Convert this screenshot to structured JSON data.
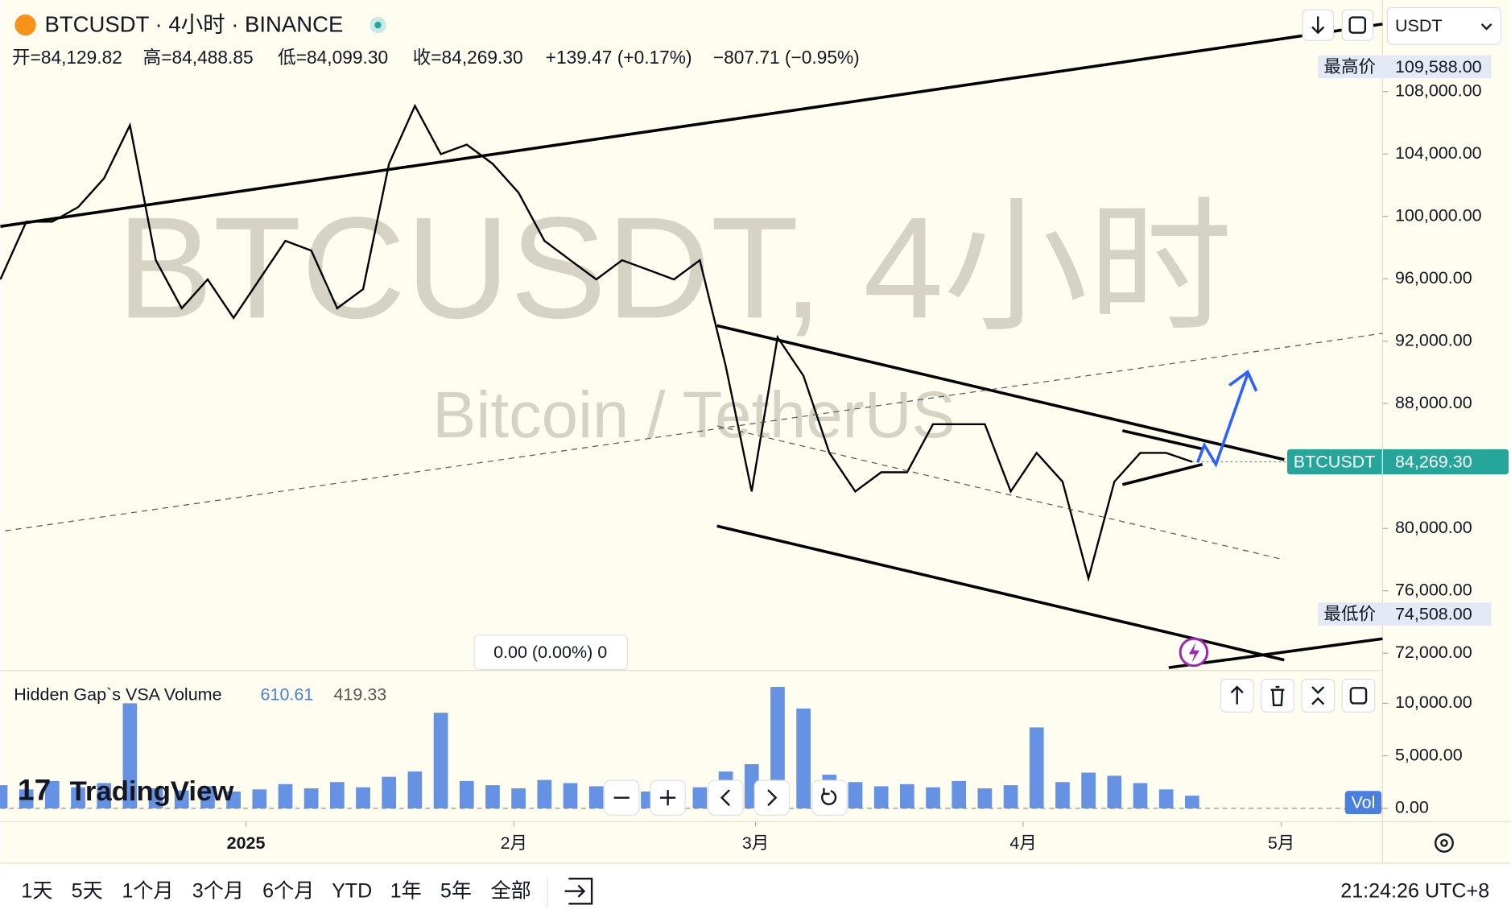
{
  "header": {
    "symbol": "BTCUSDT · 4小时 · BINANCE",
    "ohlc": [
      "开=84,129.82",
      "高=84,488.85",
      "低=84,099.30",
      "收=84,269.30",
      "+139.47 (+0.17%)",
      "−807.71 (−0.95%)"
    ],
    "currency": "USDT"
  },
  "watermark": {
    "title": "BTCUSDT, 4小时",
    "subtitle": "Bitcoin / TetherUS"
  },
  "measure": "0.00 (0.00%) 0",
  "logo": "TradingView",
  "chart_data": [
    {
      "type": "line",
      "series": [
        {
          "name": "BTCUSDT",
          "color": "#000000",
          "values": [
            95960,
            99660,
            99660,
            100590,
            102440,
            105840,
            97190,
            94110,
            95960,
            93490,
            95960,
            98430,
            97810,
            94110,
            95340,
            103370,
            107080,
            103990,
            104600,
            103370,
            101520,
            98430,
            97190,
            95960,
            97190,
            96580,
            95960,
            97190,
            90400,
            82370,
            92250,
            89780,
            84840,
            82370,
            83600,
            83600,
            86680,
            86680,
            86680,
            82370,
            84840,
            82990,
            76790,
            82990,
            84840,
            84840,
            84269.3
          ]
        }
      ],
      "last_label": "84,269.30",
      "last_color": "#26a69a",
      "markers": [
        {
          "label": "最高价",
          "value": 109588,
          "value_label": "109,588.00"
        },
        {
          "label": "最低价",
          "value": 74508,
          "value_label": "74,508.00"
        }
      ],
      "ylim": [
        70950,
        113870
      ],
      "yticks": [
        {
          "value": 72000,
          "label": "72,000.00"
        },
        {
          "value": 76000,
          "label": "76,000.00"
        },
        {
          "value": 80000,
          "label": "80,000.00"
        },
        {
          "value": 88000,
          "label": "88,000.00"
        },
        {
          "value": 92000,
          "label": "92,000.00"
        },
        {
          "value": 96000,
          "label": "96,000.00"
        },
        {
          "value": 100000,
          "label": "100,000.00"
        },
        {
          "value": 104000,
          "label": "104,000.00"
        },
        {
          "value": 108000,
          "label": "108,000.00"
        }
      ],
      "xlim": [
        0,
        53.35
      ],
      "xticks": [
        {
          "value": 9.48,
          "label": "2025"
        },
        {
          "value": 19.82,
          "label": "2月"
        },
        {
          "value": 29.15,
          "label": "3月"
        },
        {
          "value": 39.48,
          "label": "4月"
        },
        {
          "value": 49.44,
          "label": "5月"
        }
      ]
    },
    {
      "type": "bar",
      "title": "Hidden Gap`s VSA Volume",
      "stats": [
        610.61,
        419.33
      ],
      "series": [
        {
          "name": "Vol",
          "color": "#4a7fe0",
          "values": [
            2200,
            1800,
            2600,
            2000,
            2400,
            10000,
            1900,
            1700,
            2100,
            1600,
            1800,
            2300,
            1900,
            2500,
            2000,
            3000,
            3500,
            9100,
            2600,
            2200,
            1900,
            2700,
            2400,
            2100,
            1800,
            1600,
            1700,
            2000,
            3500,
            4200,
            11560,
            9500,
            3200,
            2500,
            2100,
            2300,
            2000,
            2600,
            1900,
            2200,
            7700,
            2500,
            3400,
            3100,
            2400,
            1800,
            1200
          ]
        }
      ],
      "ylim": [
        -1010,
        12750
      ],
      "yticks": [
        {
          "value": 0,
          "label": "0.00"
        },
        {
          "value": 5000,
          "label": "5,000.00"
        },
        {
          "value": 10000,
          "label": "10,000.00"
        }
      ],
      "xlim": [
        0,
        53.35
      ]
    }
  ],
  "toolbar": {
    "ranges": [
      "1天",
      "5天",
      "1个月",
      "3个月",
      "6个月",
      "YTD",
      "1年",
      "5年",
      "全部"
    ],
    "clock": "21:24:26 UTC+8"
  }
}
